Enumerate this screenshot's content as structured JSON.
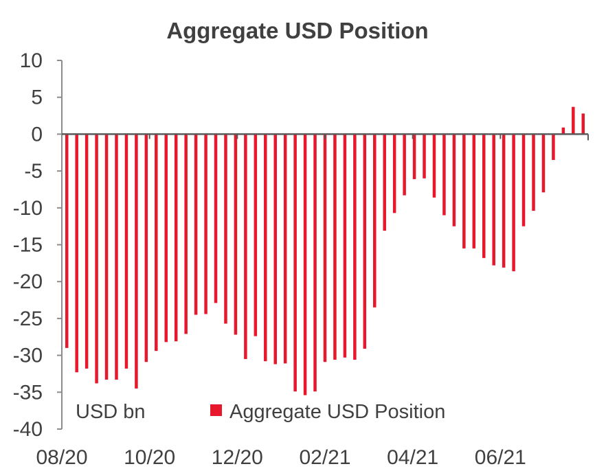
{
  "chart_data": {
    "type": "bar",
    "title": "Aggregate USD Position",
    "unit_label": "USD bn",
    "ylim": [
      -40,
      10
    ],
    "y_ticks": [
      10,
      5,
      0,
      -5,
      -10,
      -15,
      -20,
      -25,
      -30,
      -35,
      -40
    ],
    "x_tick_labels": [
      "08/20",
      "10/20",
      "12/20",
      "02/21",
      "04/21",
      "06/21"
    ],
    "grid": false,
    "legend_position": "bottom",
    "series": [
      {
        "name": "Aggregate USD Position",
        "color": "#e8182c",
        "values": [
          -29.0,
          -32.3,
          -31.8,
          -33.8,
          -33.3,
          -33.3,
          -31.8,
          -34.5,
          -30.9,
          -29.4,
          -28.2,
          -28.1,
          -27.1,
          -24.5,
          -24.4,
          -22.9,
          -25.7,
          -27.2,
          -30.5,
          -27.4,
          -30.8,
          -31.2,
          -31.1,
          -34.9,
          -35.4,
          -34.9,
          -30.9,
          -30.6,
          -30.3,
          -30.6,
          -29.1,
          -23.5,
          -13.1,
          -10.7,
          -8.3,
          -6.1,
          -6.0,
          -8.6,
          -11.0,
          -12.5,
          -15.5,
          -15.5,
          -16.8,
          -17.8,
          -18.1,
          -18.6,
          -12.5,
          -10.4,
          -7.9,
          -3.5,
          0.9,
          3.7,
          2.8
        ]
      }
    ]
  }
}
